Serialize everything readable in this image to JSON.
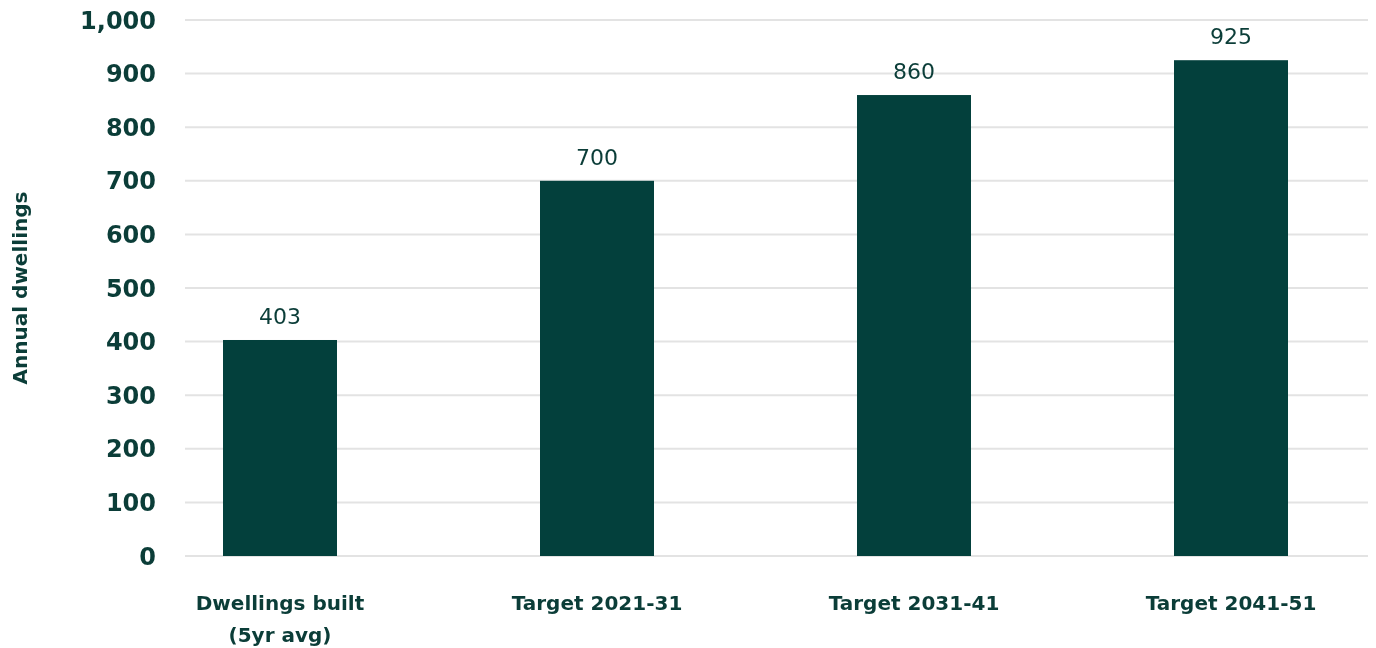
{
  "chart_data": {
    "type": "bar",
    "ylabel": "Annual dwellings",
    "categories": [
      "Dwellings built (5yr avg)",
      "Target 2021-31",
      "Target 2031-41",
      "Target 2041-51"
    ],
    "values": [
      403,
      700,
      860,
      925
    ],
    "color": "#03403c",
    "ylim": [
      0,
      1000
    ],
    "yticks": [
      0,
      {
        "value": 100,
        "label": "100"
      },
      200,
      300,
      400,
      500,
      600,
      700,
      800,
      900,
      {
        "value": 1000,
        "label": "1,000"
      }
    ],
    "grid": "y",
    "data_labels": true
  }
}
